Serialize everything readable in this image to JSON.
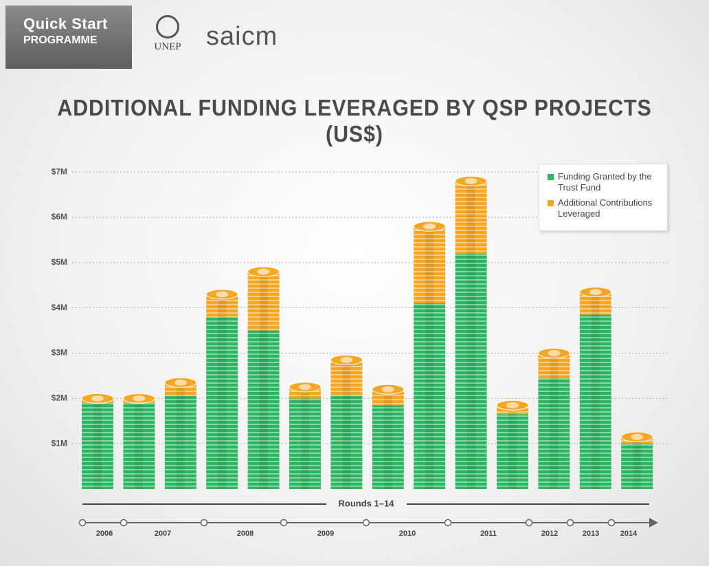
{
  "header": {
    "badge_line1": "Quick Start",
    "badge_line2": "PROGRAMME",
    "logo1": "UNEP",
    "logo2": "saicm"
  },
  "chart_data": {
    "type": "stacked_bar",
    "title": "ADDITIONAL FUNDING LEVERAGED BY QSP PROJECTS (US$)",
    "categories": [
      null,
      null,
      null,
      null,
      null,
      null,
      null,
      null,
      null,
      null,
      null,
      null,
      null,
      null
    ],
    "series": [
      {
        "name": "Funding Granted by the Trust Fund",
        "color": "#2db562",
        "values": [
          1900000,
          1900000,
          2050000,
          3800000,
          3500000,
          2000000,
          2050000,
          1850000,
          4100000,
          5200000,
          1650000,
          2450000,
          3850000,
          1000000
        ]
      },
      {
        "name": "Additional Contributions Leveraged",
        "color": "#f5a623",
        "values": [
          100000,
          100000,
          300000,
          500000,
          1300000,
          250000,
          800000,
          350000,
          1700000,
          1600000,
          200000,
          550000,
          500000,
          150000
        ]
      }
    ],
    "ylim": [
      0,
      7200000
    ],
    "yticks": [
      {
        "value": 1000000,
        "label": "$1M"
      },
      {
        "value": 2000000,
        "label": "$2M"
      },
      {
        "value": 3000000,
        "label": "$3M"
      },
      {
        "value": 4000000,
        "label": "$4M"
      },
      {
        "value": 5000000,
        "label": "$5M"
      },
      {
        "value": 6000000,
        "label": "$6M"
      },
      {
        "value": 7000000,
        "label": "$7M"
      }
    ],
    "grid": true,
    "legend": "top-right",
    "timeline": {
      "label": "Rounds 1–14",
      "years": [
        "2006",
        "2007",
        "2008",
        "2009",
        "2010",
        "2011",
        "2012",
        "2013",
        "2014"
      ]
    }
  }
}
